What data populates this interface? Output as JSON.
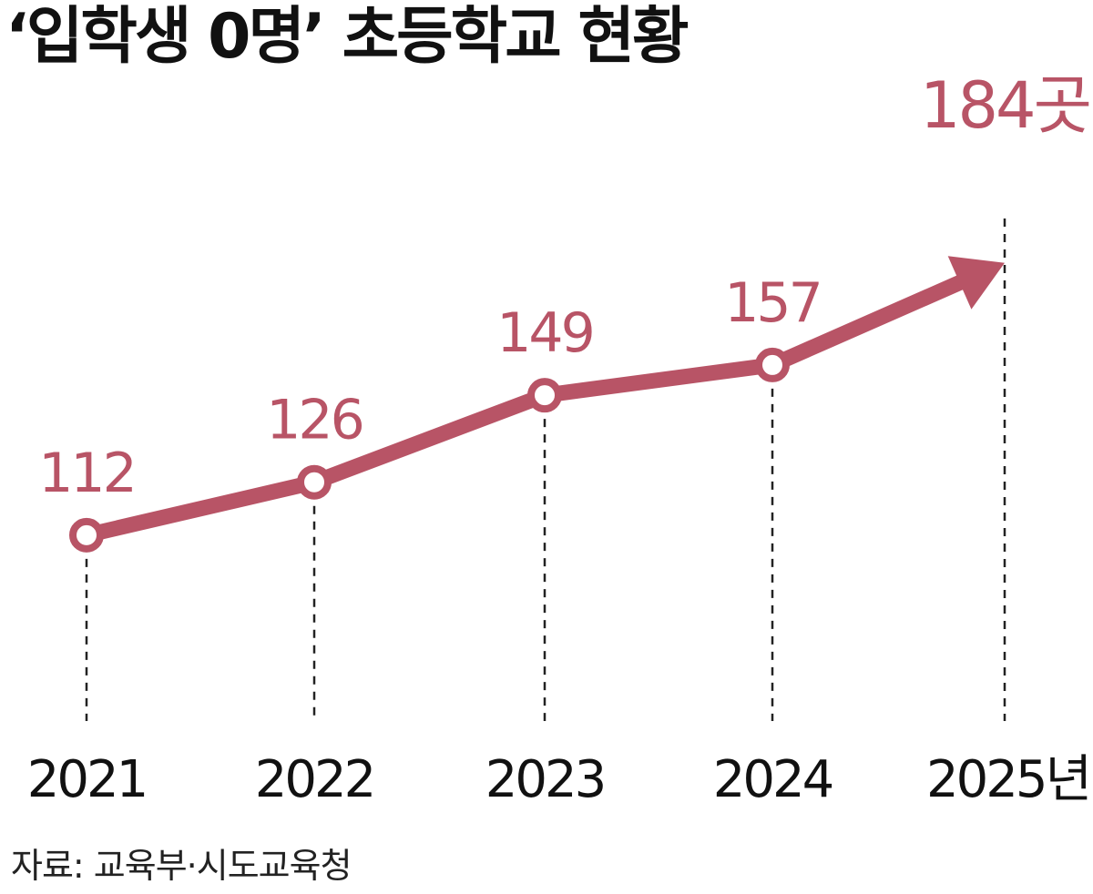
{
  "chart_data": {
    "type": "line",
    "title": "‘입학생 0명’ 초등학교 현황",
    "x": [
      "2021",
      "2022",
      "2023",
      "2024",
      "2025"
    ],
    "x_tick_labels": [
      "2021",
      "2022",
      "2023",
      "2024",
      "2025년"
    ],
    "series": [
      {
        "values": [
          112,
          126,
          149,
          157,
          184
        ]
      }
    ],
    "data_labels": [
      "112",
      "126",
      "149",
      "157",
      "184곳"
    ],
    "ylim": [
      85,
      215
    ],
    "grid": false,
    "last_point_style": "arrow",
    "xlabel": "",
    "ylabel": ""
  },
  "source": "자료: 교육부·시도교육청",
  "colors": {
    "line": "#b85466",
    "marker_fill": "#ffffff",
    "text": "#111111",
    "guide": "#222222"
  }
}
